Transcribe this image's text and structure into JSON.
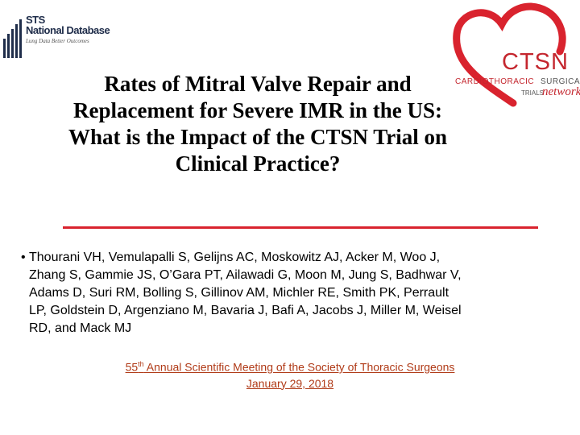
{
  "sts_logo": {
    "line1": "STS",
    "line2": "National Database",
    "tagline": "Lung Data Better Outcomes"
  },
  "ctsn_logo": {
    "acronym": "CTSN",
    "cardiothoracic": "CARDIOTHORACIC",
    "surgical": "SURGICAL",
    "trials": "TRIALS",
    "network": "network",
    "heart_color": "#d9232e"
  },
  "title": {
    "lines": [
      "Rates of Mitral Valve Repair and",
      "Replacement for Severe IMR in the US:",
      "What is the Impact of the CTSN Trial on",
      "Clinical Practice?"
    ]
  },
  "authors": {
    "bullet": "•",
    "lines": [
      "Thourani VH, Vemulapalli S, Gelijns AC, Moskowitz AJ, Acker M, Woo J,",
      "Zhang S, Gammie JS, O’Gara PT, Ailawadi G, Moon M, Jung S, Badhwar V,",
      "Adams D, Suri RM, Bolling S, Gillinov AM, Michler RE, Smith PK, Perrault",
      "LP, Goldstein D, Argenziano M, Bavaria J, Bafi A, Jacobs J, Miller M, Weisel",
      "RD, and Mack MJ"
    ]
  },
  "meeting": {
    "ordinal_number": "55",
    "ordinal_suffix": "th",
    "name": " Annual Scientific Meeting of the Society of Thoracic Surgeons",
    "date": "January 29, 2018",
    "color": "#b03a17"
  },
  "colors": {
    "divider": "#d9232e",
    "brand_red": "#c4262e"
  }
}
